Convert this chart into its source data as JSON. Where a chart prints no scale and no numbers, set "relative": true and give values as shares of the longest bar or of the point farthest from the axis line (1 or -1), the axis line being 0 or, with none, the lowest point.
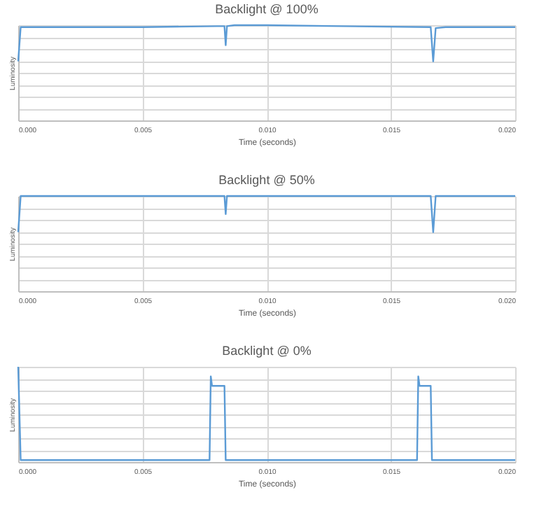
{
  "chart_data": [
    {
      "type": "line",
      "title": "Backlight @ 100%",
      "xlabel": "Time (seconds)",
      "ylabel": "Luminosity",
      "relative": true,
      "grid": true,
      "xlim": [
        0,
        0.02
      ],
      "xticks": [
        {
          "value": 0,
          "label": "0.000"
        },
        {
          "value": 0.005,
          "label": "0.005"
        },
        {
          "value": 0.01,
          "label": "0.010"
        },
        {
          "value": 0.015,
          "label": "0.015"
        },
        {
          "value": 0.02,
          "label": "0.020"
        }
      ],
      "x": [
        0,
        0.0001,
        0.002,
        0.005,
        0.008,
        0.0083,
        0.00835,
        0.0084,
        0.0087,
        0.01,
        0.013,
        0.0166,
        0.0167,
        0.0168,
        0.0172,
        0.02
      ],
      "series": [
        {
          "color": "#5b9bd5",
          "values": [
            0.62,
            0.98,
            0.98,
            0.98,
            0.99,
            0.99,
            0.79,
            0.99,
            1,
            1,
            0.99,
            0.98,
            0.62,
            0.97,
            0.98,
            0.98
          ]
        }
      ]
    },
    {
      "type": "line",
      "title": "Backlight @ 50%",
      "xlabel": "Time (seconds)",
      "ylabel": "Luminosity",
      "relative": true,
      "grid": true,
      "xlim": [
        0,
        0.02
      ],
      "xticks": [
        {
          "value": 0,
          "label": "0.000"
        },
        {
          "value": 0.005,
          "label": "0.005"
        },
        {
          "value": 0.01,
          "label": "0.010"
        },
        {
          "value": 0.015,
          "label": "0.015"
        },
        {
          "value": 0.02,
          "label": "0.020"
        }
      ],
      "x": [
        0,
        0.0001,
        0.002,
        0.005,
        0.008,
        0.0083,
        0.00835,
        0.0084,
        0.0087,
        0.01,
        0.013,
        0.0166,
        0.0167,
        0.0168,
        0.0172,
        0.02
      ],
      "series": [
        {
          "color": "#5b9bd5",
          "values": [
            0.62,
            1,
            1,
            1,
            1,
            1,
            0.81,
            1,
            1,
            1,
            1,
            1,
            0.62,
            1,
            1,
            1
          ]
        }
      ]
    },
    {
      "type": "line",
      "title": "Backlight @ 0%",
      "xlabel": "Time (seconds)",
      "ylabel": "Luminosity",
      "relative": true,
      "grid": true,
      "xlim": [
        0,
        0.02
      ],
      "xticks": [
        {
          "value": 0,
          "label": "0.000"
        },
        {
          "value": 0.005,
          "label": "0.005"
        },
        {
          "value": 0.01,
          "label": "0.010"
        },
        {
          "value": 0.015,
          "label": "0.015"
        },
        {
          "value": 0.02,
          "label": "0.020"
        }
      ],
      "x": [
        0,
        0.0001,
        0.005,
        0.0077,
        0.00775,
        0.0078,
        0.0083,
        0.00835,
        0.012,
        0.01605,
        0.0161,
        0.01615,
        0.0166,
        0.01665,
        0.02
      ],
      "series": [
        {
          "color": "#5b9bd5",
          "values": [
            1,
            0.02,
            0.02,
            0.02,
            0.9,
            0.8,
            0.8,
            0.02,
            0.02,
            0.02,
            0.9,
            0.8,
            0.8,
            0.02,
            0.02
          ]
        }
      ]
    }
  ]
}
